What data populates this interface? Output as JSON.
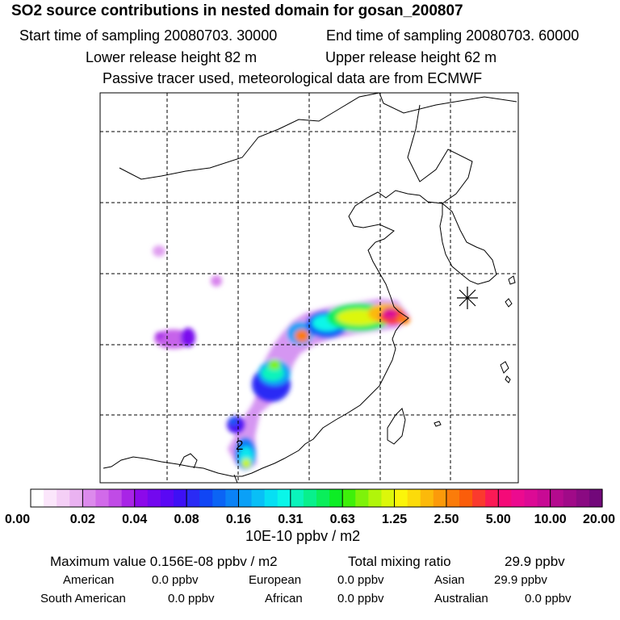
{
  "header": {
    "title": "SO2 source contributions in nested domain for gosan_200807",
    "start_time": "Start time of sampling 20080703. 30000",
    "end_time": "End time of sampling 20080703. 60000",
    "lower_height": "Lower release height   82 m",
    "upper_height": "Upper release height   62 m",
    "note": "Passive tracer used, meteorological data are from ECMWF"
  },
  "chart_data": {
    "type": "heatmap",
    "title": "SO2 source contributions in nested domain for gosan_200807",
    "units": "10E-10 ppbv / m2",
    "grid": true,
    "colorbar_ticks": [
      "0.00",
      "0.02",
      "0.04",
      "0.08",
      "0.16",
      "0.31",
      "0.63",
      "1.25",
      "2.50",
      "5.00",
      "10.00",
      "20.00"
    ],
    "colorbar_colors": [
      "#ffffff",
      "#fbe6fb",
      "#f4cff6",
      "#eab2f1",
      "#dc8aec",
      "#d16ae9",
      "#c04be6",
      "#a824e6",
      "#8c09ea",
      "#7308ef",
      "#5a08f4",
      "#3e10f5",
      "#2a2bf5",
      "#1046f5",
      "#0b64f5",
      "#0a82f6",
      "#0aa0f7",
      "#09bff6",
      "#06dff3",
      "#0af6e9",
      "#0af4bb",
      "#08f08c",
      "#0aee5b",
      "#0ded25",
      "#3ef00a",
      "#7ef20a",
      "#b1f50a",
      "#dcf70a",
      "#fbf50a",
      "#fcdb0a",
      "#fcb90a",
      "#fc9a0a",
      "#fb7c0a",
      "#fb5d0a",
      "#fb3a2e",
      "#fb1a55",
      "#f50a78",
      "#ec0a8f",
      "#dc0a95",
      "#c80a94",
      "#b40a8e",
      "#a00a88",
      "#8a0a82",
      "#72087a"
    ],
    "receptor_marker": "Gosan",
    "source_label": "2",
    "max_value": "0.156E-08 ppbv / m2",
    "total_mixing_ratio": "29.9 ppbv"
  },
  "summary": {
    "max_label": "Maximum value  0.156E-08 ppbv / m2",
    "total_label": "Total mixing ratio",
    "total_value": "29.9 ppbv",
    "regions": [
      {
        "name": "American",
        "value": "0.0 ppbv"
      },
      {
        "name": "European",
        "value": "0.0 ppbv"
      },
      {
        "name": "Asian",
        "value": "29.9 ppbv"
      },
      {
        "name": "South American",
        "value": "0.0 ppbv"
      },
      {
        "name": "African",
        "value": "0.0 ppbv"
      },
      {
        "name": "Australian",
        "value": "0.0 ppbv"
      }
    ]
  }
}
